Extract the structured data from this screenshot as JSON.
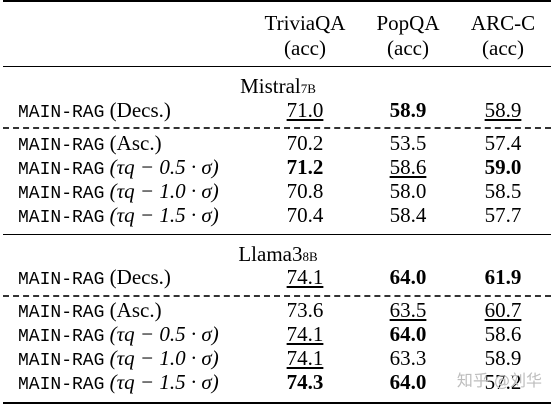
{
  "headers": [
    {
      "name": "TriviaQA",
      "metric": "(acc)"
    },
    {
      "name": "PopQA",
      "metric": "(acc)"
    },
    {
      "name": "ARC-C",
      "metric": "(acc)"
    }
  ],
  "groups": [
    {
      "model": "Mistral",
      "model_size": "7B",
      "rows": [
        {
          "method": "MAIN-RAG",
          "variant": "(Decs.)",
          "values": [
            "71.0",
            "58.9",
            "58.9"
          ],
          "bold": [
            false,
            true,
            false
          ],
          "underline": [
            true,
            false,
            true
          ]
        },
        {
          "method": "MAIN-RAG",
          "variant": "(Asc.)",
          "values": [
            "70.2",
            "53.5",
            "57.4"
          ],
          "bold": [
            false,
            false,
            false
          ],
          "underline": [
            false,
            false,
            false
          ]
        },
        {
          "method": "MAIN-RAG",
          "variant": "(τq − 0.5 · σ)",
          "values": [
            "71.2",
            "58.6",
            "59.0"
          ],
          "bold": [
            true,
            false,
            true
          ],
          "underline": [
            false,
            true,
            false
          ]
        },
        {
          "method": "MAIN-RAG",
          "variant": "(τq − 1.0 · σ)",
          "values": [
            "70.8",
            "58.0",
            "58.5"
          ],
          "bold": [
            false,
            false,
            false
          ],
          "underline": [
            false,
            false,
            false
          ]
        },
        {
          "method": "MAIN-RAG",
          "variant": "(τq − 1.5 · σ)",
          "values": [
            "70.4",
            "58.4",
            "57.7"
          ],
          "bold": [
            false,
            false,
            false
          ],
          "underline": [
            false,
            false,
            false
          ]
        }
      ]
    },
    {
      "model": "Llama3",
      "model_size": "8B",
      "rows": [
        {
          "method": "MAIN-RAG",
          "variant": "(Decs.)",
          "values": [
            "74.1",
            "64.0",
            "61.9"
          ],
          "bold": [
            false,
            true,
            true
          ],
          "underline": [
            true,
            false,
            false
          ]
        },
        {
          "method": "MAIN-RAG",
          "variant": "(Asc.)",
          "values": [
            "73.6",
            "63.5",
            "60.7"
          ],
          "bold": [
            false,
            false,
            false
          ],
          "underline": [
            false,
            true,
            true
          ]
        },
        {
          "method": "MAIN-RAG",
          "variant": "(τq − 0.5 · σ)",
          "values": [
            "74.1",
            "64.0",
            "58.6"
          ],
          "bold": [
            false,
            true,
            false
          ],
          "underline": [
            true,
            false,
            false
          ]
        },
        {
          "method": "MAIN-RAG",
          "variant": "(τq − 1.0 · σ)",
          "values": [
            "74.1",
            "63.3",
            "58.9"
          ],
          "bold": [
            false,
            false,
            false
          ],
          "underline": [
            true,
            false,
            false
          ]
        },
        {
          "method": "MAIN-RAG",
          "variant": "(τq − 1.5 · σ)",
          "values": [
            "74.3",
            "64.0",
            "57.2"
          ],
          "bold": [
            true,
            true,
            false
          ],
          "underline": [
            false,
            false,
            false
          ]
        }
      ]
    }
  ],
  "watermark": "知乎 @刘华"
}
